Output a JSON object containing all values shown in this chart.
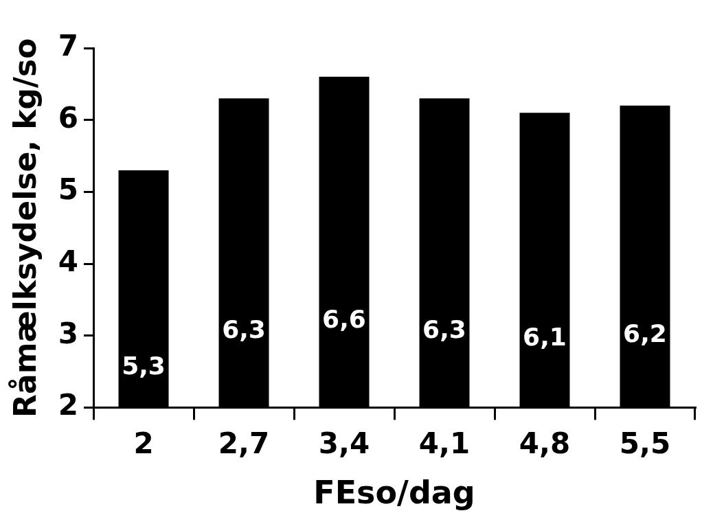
{
  "chart_data": {
    "type": "bar",
    "xlabel": "FEso/dag",
    "ylabel": "Råmælksydelse, kg/so",
    "categories": [
      "2",
      "2,7",
      "3,4",
      "4,1",
      "4,8",
      "5,5"
    ],
    "values": [
      5.3,
      6.3,
      6.6,
      6.3,
      6.1,
      6.2
    ],
    "value_labels": [
      "5,3",
      "6,3",
      "6,6",
      "6,3",
      "6,1",
      "6,2"
    ],
    "color": "#000000",
    "ylim": [
      2,
      7
    ],
    "yticks": [
      2,
      3,
      4,
      5,
      6,
      7
    ],
    "grid": false,
    "legend": false
  }
}
